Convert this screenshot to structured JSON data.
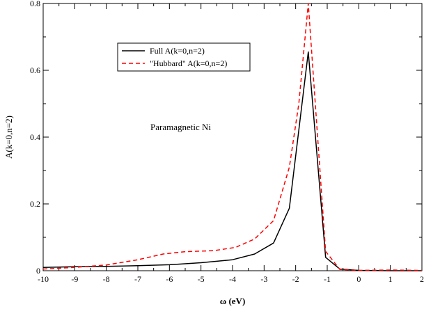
{
  "chart_data": {
    "type": "line",
    "title": "",
    "xlabel": "ω (eV)",
    "ylabel": "A(k=0,n=2)",
    "xlim": [
      -10,
      2
    ],
    "ylim": [
      0,
      0.8
    ],
    "x_ticks": [
      "-10",
      "-9",
      "-8",
      "-7",
      "-6",
      "-5",
      "-4",
      "-3",
      "-2",
      "-1",
      "0",
      "1",
      "2"
    ],
    "y_ticks": [
      "0",
      "0.2",
      "0.4",
      "0.6",
      "0.8"
    ],
    "grid": false,
    "legend_position": "top-left",
    "annotation": "Paramagnetic Ni",
    "series": [
      {
        "name": "Full A(k=0,n=2)",
        "color": "#000000",
        "dash": "solid",
        "points": [
          [
            -10,
            0.01
          ],
          [
            -9,
            0.012
          ],
          [
            -8,
            0.013
          ],
          [
            -7,
            0.015
          ],
          [
            -6,
            0.018
          ],
          [
            -5,
            0.024
          ],
          [
            -4,
            0.033
          ],
          [
            -3.3,
            0.05
          ],
          [
            -2.7,
            0.083
          ],
          [
            -2.2,
            0.187
          ],
          [
            -1.6,
            0.655
          ],
          [
            -1.05,
            0.04
          ],
          [
            -0.6,
            0.005
          ],
          [
            0,
            0.001
          ],
          [
            1,
            0
          ],
          [
            2,
            0
          ]
        ]
      },
      {
        "name": "\"Hubbard\" A(k=0,n=2)",
        "color": "#ff0000",
        "dash": "dashed",
        "points": [
          [
            -10,
            0.005
          ],
          [
            -9,
            0.01
          ],
          [
            -8,
            0.017
          ],
          [
            -7,
            0.033
          ],
          [
            -6.2,
            0.05
          ],
          [
            -5.5,
            0.057
          ],
          [
            -4.6,
            0.06
          ],
          [
            -3.9,
            0.07
          ],
          [
            -3.3,
            0.095
          ],
          [
            -2.7,
            0.15
          ],
          [
            -2.2,
            0.31
          ],
          [
            -1.9,
            0.5
          ],
          [
            -1.6,
            0.8
          ],
          [
            -1.05,
            0.058
          ],
          [
            -0.6,
            0.004
          ],
          [
            0,
            0.001
          ],
          [
            1,
            0.002
          ],
          [
            2,
            0.001
          ]
        ]
      }
    ]
  }
}
